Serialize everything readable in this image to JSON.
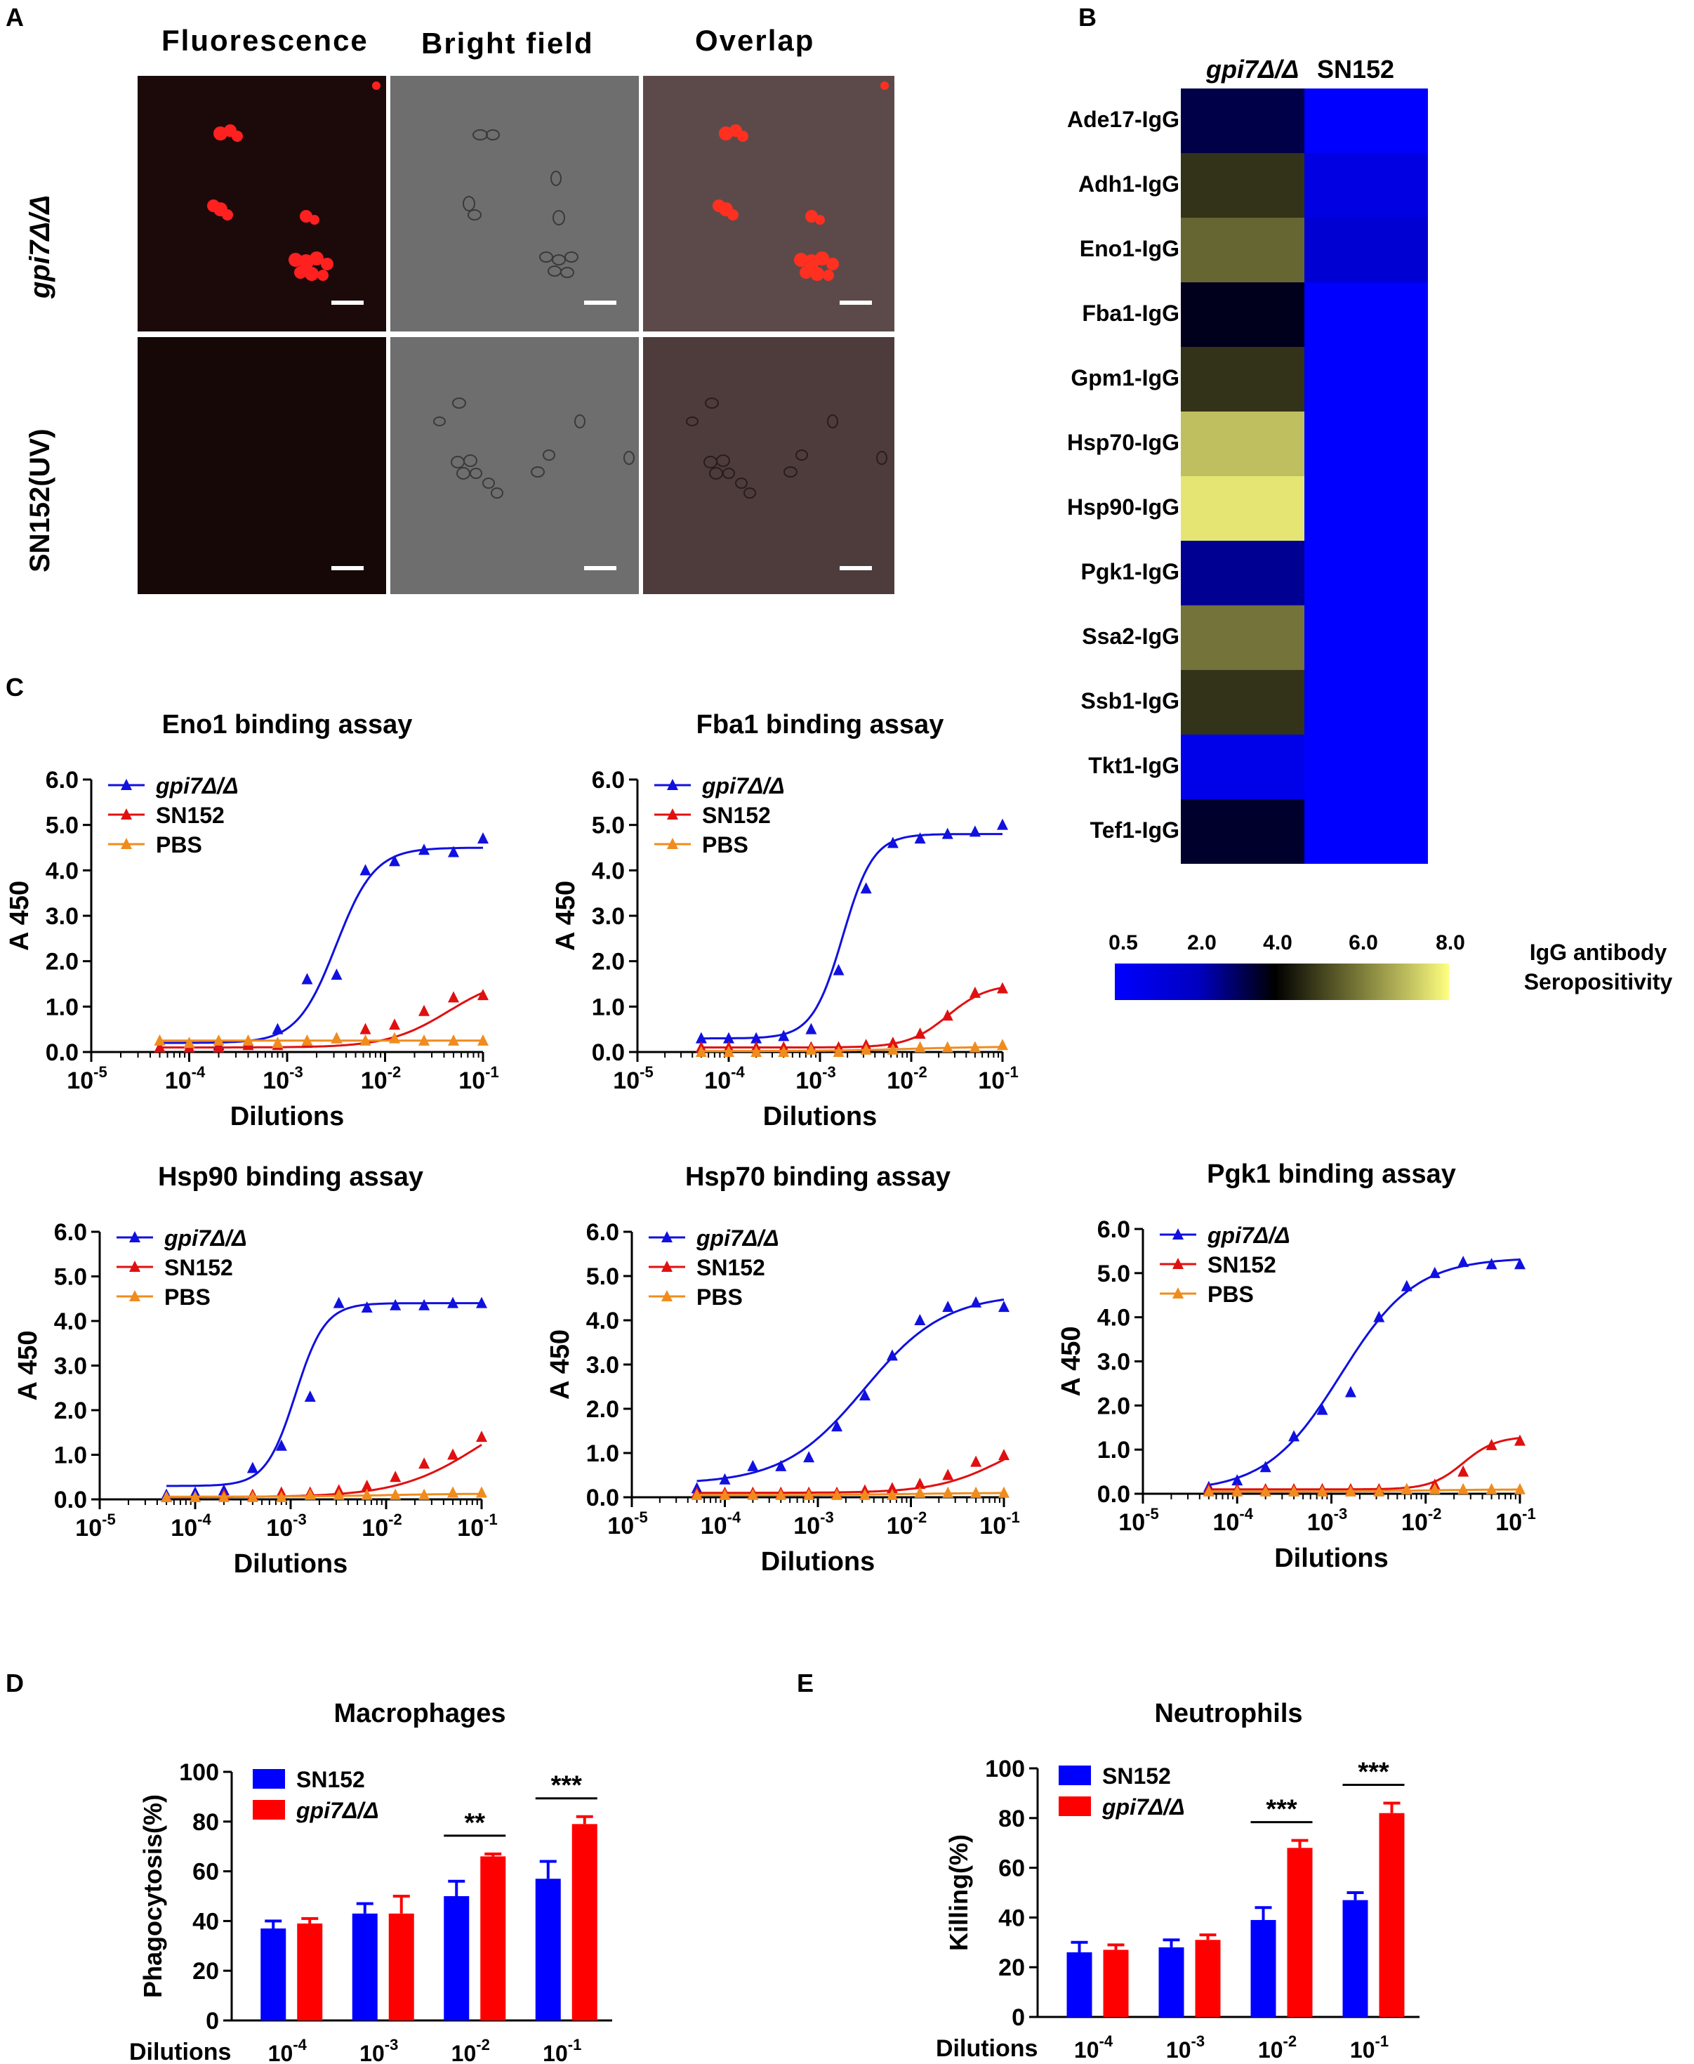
{
  "panel_labels": {
    "A": "A",
    "B": "B",
    "C": "C",
    "D": "D",
    "E": "E"
  },
  "micrographs": {
    "columns": [
      "Fluorescence",
      "Bright field",
      "Overlap"
    ],
    "rows": [
      "gpi7Δ/Δ",
      "SN152(UV)"
    ]
  },
  "heatmap": {
    "columns": [
      "gpi7Δ/Δ",
      "SN152"
    ],
    "rows": [
      "Ade17-IgG",
      "Adh1-IgG",
      "Eno1-IgG",
      "Fba1-IgG",
      "Gpm1-IgG",
      "Hsp70-IgG",
      "Hsp90-IgG",
      "Pgk1-IgG",
      "Ssa2-IgG",
      "Ssb1-IgG",
      "Tkt1-IgG",
      "Tef1-IgG"
    ],
    "gpi7_values": [
      3.0,
      4.8,
      5.6,
      3.6,
      4.8,
      7.0,
      7.6,
      2.0,
      5.8,
      4.8,
      0.8,
      3.4
    ],
    "sn152_values": [
      0.5,
      0.9,
      1.1,
      0.5,
      0.5,
      0.5,
      0.5,
      0.5,
      0.5,
      0.5,
      0.5,
      0.5
    ],
    "colorbar_ticks": [
      "0.5",
      "2.0",
      "4.0",
      "6.0",
      "8.0"
    ],
    "colorbar_title_lines": [
      "IgG antibody",
      "Seropositivity"
    ],
    "colors": {
      "low": "#0000ff",
      "mid": "#000000",
      "high": "#ffff80"
    }
  },
  "chart_data": [
    {
      "type": "scatter",
      "title": "Eno1 binding assay",
      "xlabel": "Dilutions",
      "ylabel": "A 450",
      "xscale": "log",
      "xlim": [
        1e-05,
        0.1
      ],
      "ylim": [
        0,
        6
      ],
      "yticks": [
        "0.0",
        "1.0",
        "2.0",
        "3.0",
        "4.0",
        "5.0",
        "6.0"
      ],
      "x": [
        5e-05,
        0.0001,
        0.0002,
        0.0004,
        0.0008,
        0.0016,
        0.0032,
        0.0063,
        0.0125,
        0.025,
        0.05,
        0.1
      ],
      "series": [
        {
          "name": "gpi7Δ/Δ",
          "color": "#1010e0",
          "values": [
            0.1,
            0.1,
            0.15,
            0.2,
            0.5,
            1.6,
            1.7,
            4.0,
            4.2,
            4.45,
            4.4,
            4.7
          ],
          "fit": {
            "bottom": 0.2,
            "top": 4.5,
            "logEC50": -2.5,
            "hill": 2.2
          }
        },
        {
          "name": "SN152",
          "color": "#e01010",
          "values": [
            0.1,
            0.1,
            0.1,
            0.15,
            0.15,
            0.2,
            0.3,
            0.5,
            0.6,
            0.9,
            1.2,
            1.25
          ],
          "fit": {
            "bottom": 0.1,
            "top": 1.7,
            "logEC50": -1.35,
            "hill": 1.4
          }
        },
        {
          "name": "PBS",
          "color": "#f08c1e",
          "values": [
            0.25,
            0.2,
            0.25,
            0.25,
            0.2,
            0.25,
            0.3,
            0.25,
            0.3,
            0.25,
            0.25,
            0.25
          ],
          "fit": {
            "bottom": 0.25,
            "top": 0.25,
            "logEC50": -3,
            "hill": 1
          }
        }
      ]
    },
    {
      "type": "scatter",
      "title": "Fba1 binding assay",
      "xlabel": "Dilutions",
      "ylabel": "A 450",
      "xscale": "log",
      "xlim": [
        1e-05,
        0.1
      ],
      "ylim": [
        0,
        6
      ],
      "yticks": [
        "0.0",
        "1.0",
        "2.0",
        "3.0",
        "4.0",
        "5.0",
        "6.0"
      ],
      "x": [
        5e-05,
        0.0001,
        0.0002,
        0.0004,
        0.0008,
        0.0016,
        0.0032,
        0.0063,
        0.0125,
        0.025,
        0.05,
        0.1
      ],
      "series": [
        {
          "name": "gpi7Δ/Δ",
          "color": "#1010e0",
          "values": [
            0.3,
            0.3,
            0.3,
            0.35,
            0.5,
            1.8,
            3.6,
            4.6,
            4.7,
            4.8,
            4.85,
            5.0
          ],
          "fit": {
            "bottom": 0.3,
            "top": 4.8,
            "logEC50": -2.75,
            "hill": 2.6
          }
        },
        {
          "name": "SN152",
          "color": "#e01010",
          "values": [
            0.1,
            0.1,
            0.1,
            0.1,
            0.1,
            0.1,
            0.15,
            0.2,
            0.4,
            0.8,
            1.3,
            1.4
          ],
          "fit": {
            "bottom": 0.1,
            "top": 1.5,
            "logEC50": -1.6,
            "hill": 2.0
          }
        },
        {
          "name": "PBS",
          "color": "#f08c1e",
          "values": [
            0.0,
            0.0,
            0.0,
            0.0,
            0.05,
            0.0,
            0.05,
            0.05,
            0.1,
            0.1,
            0.1,
            0.15
          ],
          "fit": {
            "bottom": 0.02,
            "top": 0.12,
            "logEC50": -2,
            "hill": 1
          }
        }
      ]
    },
    {
      "type": "scatter",
      "title": "Hsp90 binding assay",
      "xlabel": "Dilutions",
      "ylabel": "A 450",
      "xscale": "log",
      "xlim": [
        1e-05,
        0.1
      ],
      "ylim": [
        0,
        6
      ],
      "yticks": [
        "0.0",
        "1.0",
        "2.0",
        "3.0",
        "4.0",
        "5.0",
        "6.0"
      ],
      "x": [
        5e-05,
        0.0001,
        0.0002,
        0.0004,
        0.0008,
        0.0016,
        0.0032,
        0.0063,
        0.0125,
        0.025,
        0.05,
        0.1
      ],
      "series": [
        {
          "name": "gpi7Δ/Δ",
          "color": "#1010e0",
          "values": [
            0.1,
            0.15,
            0.2,
            0.7,
            1.2,
            2.3,
            4.4,
            4.3,
            4.35,
            4.35,
            4.4,
            4.4
          ],
          "fit": {
            "bottom": 0.3,
            "top": 4.4,
            "logEC50": -2.95,
            "hill": 2.8
          }
        },
        {
          "name": "SN152",
          "color": "#e01010",
          "values": [
            0.05,
            0.05,
            0.1,
            0.1,
            0.15,
            0.15,
            0.2,
            0.3,
            0.5,
            0.8,
            1.0,
            1.4
          ],
          "fit": {
            "bottom": 0.05,
            "top": 2.4,
            "logEC50": -1.0,
            "hill": 1.0
          }
        },
        {
          "name": "PBS",
          "color": "#f08c1e",
          "values": [
            0.05,
            0.05,
            0.05,
            0.05,
            0.05,
            0.1,
            0.1,
            0.1,
            0.1,
            0.1,
            0.15,
            0.15
          ],
          "fit": {
            "bottom": 0.06,
            "top": 0.13,
            "logEC50": -2,
            "hill": 1
          }
        }
      ]
    },
    {
      "type": "scatter",
      "title": "Hsp70 binding assay",
      "xlabel": "Dilutions",
      "ylabel": "A 450",
      "xscale": "log",
      "xlim": [
        1e-05,
        0.1
      ],
      "ylim": [
        0,
        6
      ],
      "yticks": [
        "0.0",
        "1.0",
        "2.0",
        "3.0",
        "4.0",
        "5.0",
        "6.0"
      ],
      "x": [
        5e-05,
        0.0001,
        0.0002,
        0.0004,
        0.0008,
        0.0016,
        0.0032,
        0.0063,
        0.0125,
        0.025,
        0.05,
        0.1
      ],
      "series": [
        {
          "name": "gpi7Δ/Δ",
          "color": "#1010e0",
          "values": [
            0.2,
            0.4,
            0.7,
            0.7,
            0.9,
            1.6,
            2.3,
            3.2,
            4.0,
            4.3,
            4.4,
            4.3
          ],
          "fit": {
            "bottom": 0.3,
            "top": 4.6,
            "logEC50": -2.5,
            "hill": 1.0
          }
        },
        {
          "name": "SN152",
          "color": "#e01010",
          "values": [
            0.1,
            0.1,
            0.1,
            0.1,
            0.1,
            0.1,
            0.15,
            0.2,
            0.3,
            0.5,
            0.8,
            0.95
          ],
          "fit": {
            "bottom": 0.1,
            "top": 1.6,
            "logEC50": -1.0,
            "hill": 1.2
          }
        },
        {
          "name": "PBS",
          "color": "#f08c1e",
          "values": [
            0.05,
            0.05,
            0.05,
            0.05,
            0.05,
            0.05,
            0.05,
            0.05,
            0.1,
            0.1,
            0.1,
            0.1
          ],
          "fit": {
            "bottom": 0.05,
            "top": 0.1,
            "logEC50": -2,
            "hill": 1
          }
        }
      ]
    },
    {
      "type": "scatter",
      "title": "Pgk1 binding assay",
      "xlabel": "Dilutions",
      "ylabel": "A 450",
      "xscale": "log",
      "xlim": [
        1e-05,
        0.1
      ],
      "ylim": [
        0,
        6
      ],
      "yticks": [
        "0.0",
        "1.0",
        "2.0",
        "3.0",
        "4.0",
        "5.0",
        "6.0"
      ],
      "x": [
        5e-05,
        0.0001,
        0.0002,
        0.0004,
        0.0008,
        0.0016,
        0.0032,
        0.0063,
        0.0125,
        0.025,
        0.05,
        0.1
      ],
      "series": [
        {
          "name": "gpi7Δ/Δ",
          "color": "#1010e0",
          "values": [
            0.15,
            0.3,
            0.6,
            1.3,
            1.9,
            2.3,
            4.0,
            4.7,
            5.0,
            5.25,
            5.2,
            5.2
          ],
          "fit": {
            "bottom": 0.05,
            "top": 5.35,
            "logEC50": -2.9,
            "hill": 1.1
          }
        },
        {
          "name": "SN152",
          "color": "#e01010",
          "values": [
            0.1,
            0.1,
            0.1,
            0.1,
            0.1,
            0.1,
            0.1,
            0.1,
            0.2,
            0.5,
            1.1,
            1.2
          ],
          "fit": {
            "bottom": 0.1,
            "top": 1.3,
            "logEC50": -1.6,
            "hill": 2.5
          }
        },
        {
          "name": "PBS",
          "color": "#f08c1e",
          "values": [
            0.05,
            0.05,
            0.05,
            0.05,
            0.05,
            0.05,
            0.05,
            0.1,
            0.1,
            0.1,
            0.1,
            0.1
          ],
          "fit": {
            "bottom": 0.05,
            "top": 0.1,
            "logEC50": -2,
            "hill": 1
          }
        }
      ]
    },
    {
      "type": "bar",
      "title": "Macrophages",
      "ylabel": "Phagocytosis(%)",
      "xlabel": "Dilutions",
      "ylim": [
        0,
        100
      ],
      "yticks": [
        "0",
        "20",
        "40",
        "60",
        "80",
        "100"
      ],
      "categories": [
        "10^-4",
        "10^-3",
        "10^-2",
        "10^-1"
      ],
      "series": [
        {
          "name": "SN152",
          "color": "#0000ff",
          "values": [
            37,
            43,
            50,
            57
          ],
          "errors": [
            3,
            4,
            6,
            7
          ]
        },
        {
          "name": "gpi7Δ/Δ",
          "color": "#ff0000",
          "values": [
            39,
            43,
            66,
            79
          ],
          "errors": [
            2,
            7,
            1,
            3
          ]
        }
      ],
      "significance": [
        {
          "category": 2,
          "label": "**"
        },
        {
          "category": 3,
          "label": "***"
        }
      ]
    },
    {
      "type": "bar",
      "title": "Neutrophils",
      "ylabel": "Killing(%)",
      "xlabel": "Dilutions",
      "ylim": [
        0,
        100
      ],
      "yticks": [
        "0",
        "20",
        "40",
        "60",
        "80",
        "100"
      ],
      "categories": [
        "10^-4",
        "10^-3",
        "10^-2",
        "10^-1"
      ],
      "series": [
        {
          "name": "SN152",
          "color": "#0000ff",
          "values": [
            26,
            28,
            39,
            47
          ],
          "errors": [
            4,
            3,
            5,
            3
          ]
        },
        {
          "name": "gpi7Δ/Δ",
          "color": "#ff0000",
          "values": [
            27,
            31,
            68,
            82
          ],
          "errors": [
            2,
            2,
            3,
            4
          ]
        }
      ],
      "significance": [
        {
          "category": 2,
          "label": "***"
        },
        {
          "category": 3,
          "label": "***"
        }
      ]
    }
  ]
}
